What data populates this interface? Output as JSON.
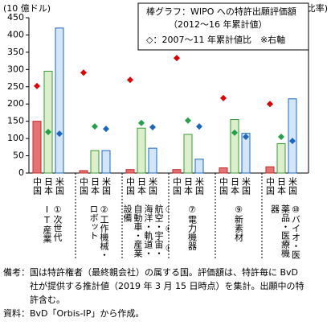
{
  "chart_data": {
    "type": "bar",
    "y_label": "(10 億ドル)",
    "y2_label": "(比率)",
    "legend_lines": [
      "棒グラフ：WIPO への特許出願評価額",
      "（2012～16 年累計値）",
      "◇：2007～11 年累計値比　※右軸"
    ],
    "categories": [
      "①次世代IT産業",
      "②工作機械・ロボット",
      "③～⑥、⑧航空・宇宙・海洋・軌道・自動車・産業設備",
      "⑦電力機器",
      "⑨新素材",
      "⑩バイオ・医薬品・医療機器"
    ],
    "series": [
      {
        "name": "中国",
        "color": "#e57373",
        "values": [
          150,
          7,
          10,
          10,
          15,
          18
        ]
      },
      {
        "name": "日本",
        "color": "#dcefcb",
        "values": [
          295,
          65,
          130,
          112,
          155,
          85
        ]
      },
      {
        "name": "米国",
        "color": "#d3e6f7",
        "values": [
          420,
          65,
          72,
          40,
          115,
          215
        ]
      }
    ],
    "ratio_series": [
      {
        "color": "#e00000",
        "axis": "y2",
        "values": [
          2.52,
          2.91,
          2.7,
          3.33,
          2.17,
          2.0
        ]
      },
      {
        "color": "#23a04a",
        "axis": "y2",
        "values": [
          1.19,
          1.35,
          1.45,
          1.52,
          1.17,
          1.05
        ]
      },
      {
        "color": "#1b67c0",
        "axis": "y2",
        "values": [
          1.14,
          1.28,
          1.33,
          1.35,
          1.05,
          0.93
        ]
      }
    ],
    "ylim": [
      0,
      450
    ],
    "yticks": [
      0,
      50,
      100,
      150,
      200,
      250,
      300,
      350,
      400,
      450
    ],
    "y2lim": [
      0,
      4.5
    ],
    "grid": false,
    "notes": [
      "備考：国は特許権者（最終親会社）の属する国。評価額は、特許毎に BvD",
      "社が提供する推計値（2019 年 3 月 15 日時点）を集計。出願中の特",
      "許含む。",
      "資料：BvD「Orbis-IP」から作成。"
    ]
  }
}
